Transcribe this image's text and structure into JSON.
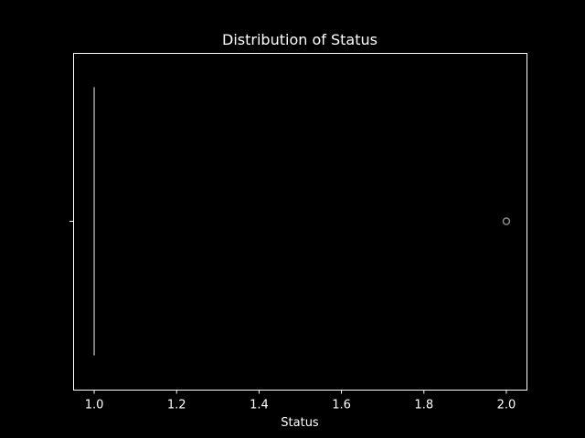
{
  "chart_data": {
    "type": "box",
    "orientation": "horizontal",
    "title": "Distribution of Status",
    "xlabel": "Status",
    "ylabel": "",
    "xlim": [
      0.95,
      2.05
    ],
    "xticks": [
      1.0,
      1.2,
      1.4,
      1.6,
      1.8,
      2.0
    ],
    "xtick_labels": [
      "1.0",
      "1.2",
      "1.4",
      "1.6",
      "1.8",
      "2.0"
    ],
    "box": {
      "min": 1.0,
      "q1": 1.0,
      "median": 1.0,
      "q3": 1.0,
      "max": 1.0,
      "outliers": [
        2.0
      ]
    },
    "grid": false,
    "colors": {
      "background": "#000000",
      "foreground": "#ffffff",
      "box": "#8c8c8c",
      "outlier": "#8c8c8c"
    }
  }
}
